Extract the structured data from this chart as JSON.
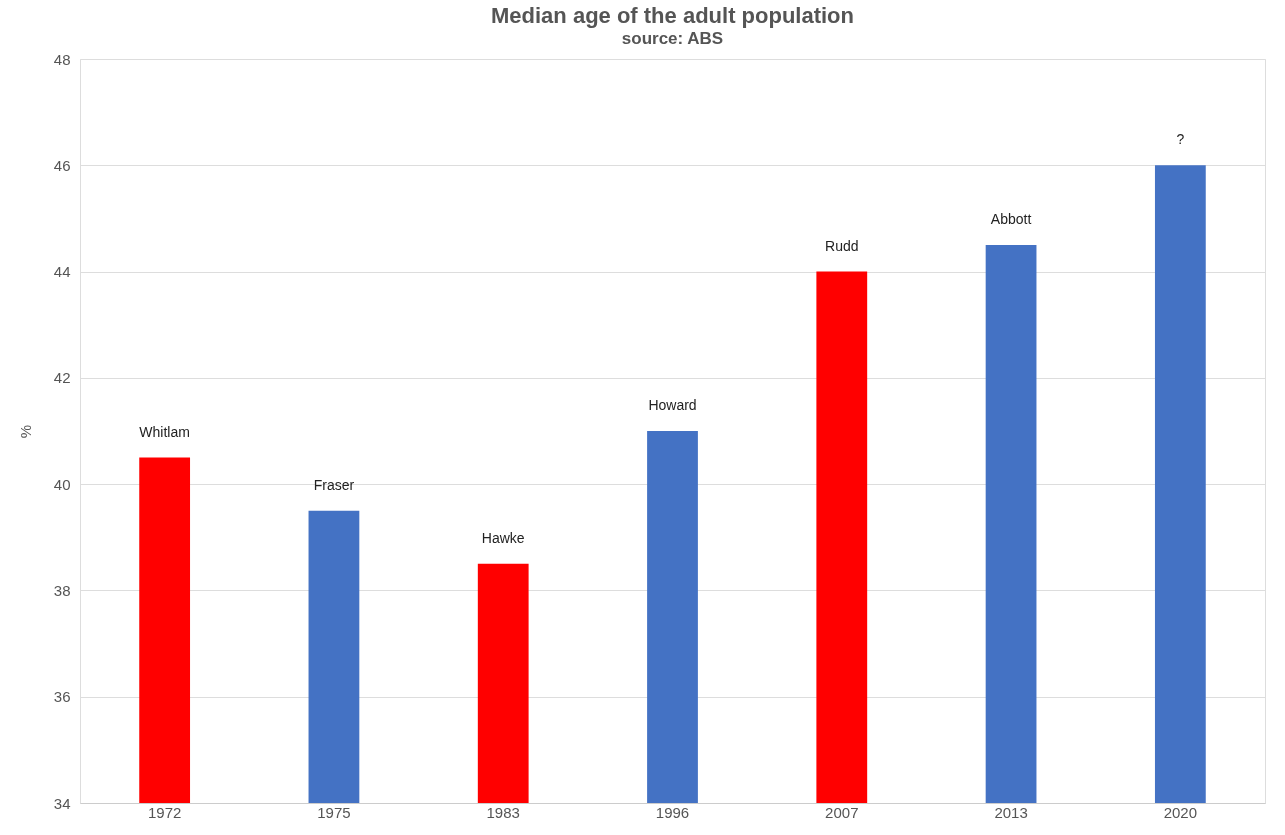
{
  "chart_data": {
    "type": "bar",
    "title": "Median age of the adult population",
    "subtitle": "source: ABS",
    "ylabel": "%",
    "categories": [
      "1972",
      "1975",
      "1983",
      "1996",
      "2007",
      "2013",
      "2020"
    ],
    "values": [
      40.5,
      39.5,
      38.5,
      41,
      44,
      44.5,
      46
    ],
    "colors": [
      "#ff0000",
      "#4472c4",
      "#ff0000",
      "#4472c4",
      "#ff0000",
      "#4472c4",
      "#4472c4"
    ],
    "ylim": [
      34,
      48
    ],
    "yticks": [
      34,
      36,
      38,
      40,
      42,
      44,
      46,
      48
    ],
    "grid": "y",
    "annotations": [
      {
        "text": "Whitlam",
        "x": "1972",
        "y": 40.5
      },
      {
        "text": "Fraser",
        "x": "1975",
        "y": 39.5
      },
      {
        "text": "Hawke",
        "x": "1983",
        "y": 38.5
      },
      {
        "text": "Howard",
        "x": "1996",
        "y": 41
      },
      {
        "text": "Rudd",
        "x": "2007",
        "y": 44
      },
      {
        "text": "Abbott",
        "x": "2013",
        "y": 44.5
      },
      {
        "text": "?",
        "x": "2020",
        "y": 46
      }
    ]
  }
}
